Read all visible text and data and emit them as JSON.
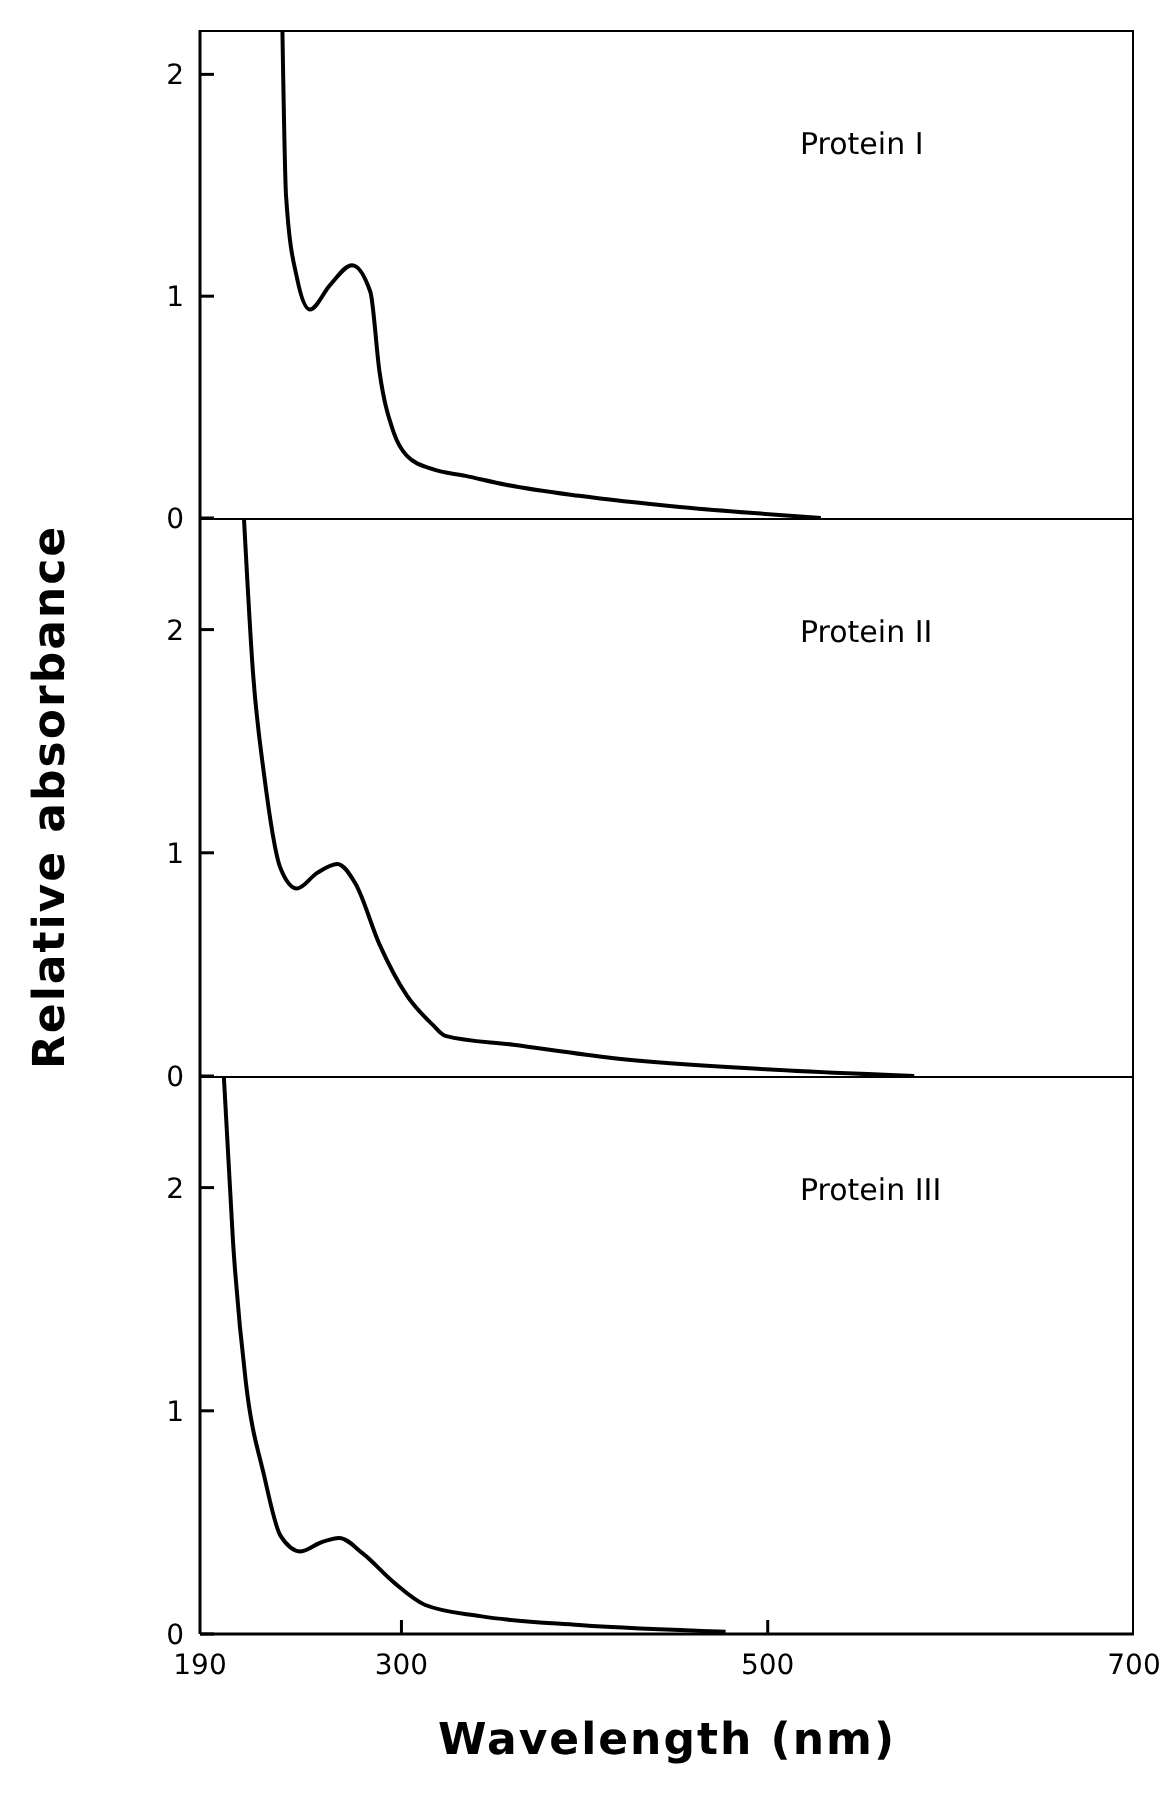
{
  "chart_data": [
    {
      "type": "line",
      "x": [
        235,
        237,
        243,
        250,
        261,
        273,
        283,
        288,
        296,
        303,
        317,
        335,
        357,
        397,
        452,
        496,
        529
      ],
      "series": [
        {
          "color": "#000000",
          "values": [
            2.2,
            1.45,
            1.08,
            0.94,
            1.05,
            1.14,
            1.02,
            0.66,
            0.38,
            0.28,
            0.22,
            0.19,
            0.15,
            0.1,
            0.05,
            0.02,
            0
          ]
        }
      ],
      "xlim": [
        190,
        700
      ],
      "xticks": [
        190,
        300,
        500,
        700
      ],
      "ylim": [
        0,
        2.2
      ],
      "yticks": [
        0,
        1,
        2
      ],
      "tick_labels": "y",
      "annotations": [
        "Protein I"
      ]
    },
    {
      "type": "line",
      "x": [
        214,
        219,
        225,
        234,
        243,
        254,
        265,
        275,
        288,
        303,
        317,
        324,
        361,
        416,
        499,
        580
      ],
      "series": [
        {
          "color": "#000000",
          "values": [
            2.5,
            1.8,
            1.35,
            0.93,
            0.84,
            0.91,
            0.95,
            0.86,
            0.59,
            0.36,
            0.23,
            0.18,
            0.14,
            0.08,
            0.03,
            0
          ]
        }
      ],
      "xlim": [
        190,
        700
      ],
      "xticks": [
        190,
        300,
        500,
        700
      ],
      "ylim": [
        0,
        2.5
      ],
      "yticks": [
        0,
        1,
        2
      ],
      "tick_labels": "y",
      "ylabel": "Relative  absorbance",
      "annotations": [
        "Protein II"
      ]
    },
    {
      "type": "line",
      "x": [
        203,
        208,
        215,
        225,
        234,
        245,
        256,
        266,
        279,
        296,
        313,
        343,
        397,
        477
      ],
      "series": [
        {
          "color": "#000000",
          "values": [
            2.5,
            1.76,
            1.13,
            0.71,
            0.44,
            0.37,
            0.41,
            0.43,
            0.36,
            0.23,
            0.13,
            0.08,
            0.04,
            0.01
          ]
        }
      ],
      "xlim": [
        190,
        700
      ],
      "xticks": [
        190,
        300,
        500,
        700
      ],
      "ylim": [
        0,
        2.5
      ],
      "yticks": [
        0,
        1,
        2
      ],
      "xlabel": "Wavelength (nm)",
      "annotations": [
        "Protein III"
      ]
    }
  ]
}
